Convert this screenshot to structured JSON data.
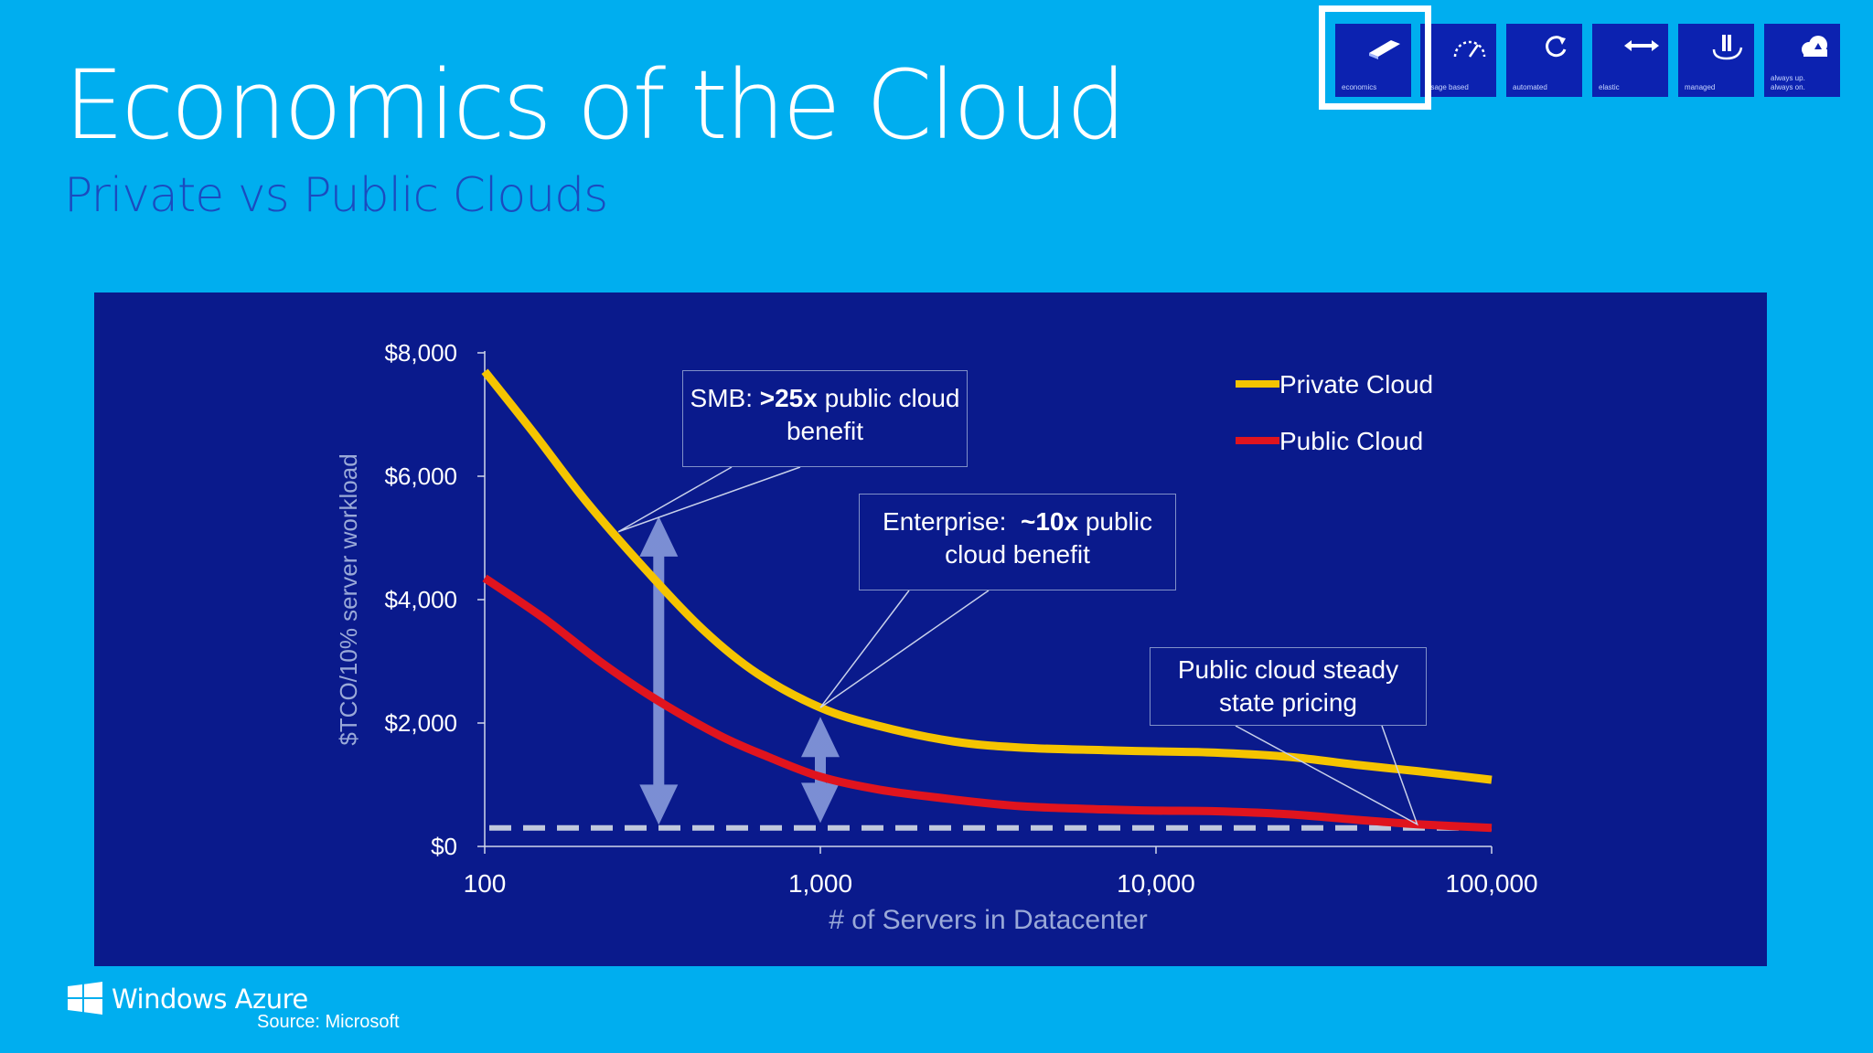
{
  "header": {
    "title": "Economics of the Cloud",
    "subtitle": "Private vs Public Clouds"
  },
  "nav_tiles": [
    {
      "label": "economics",
      "icon": "pen-icon",
      "active": true
    },
    {
      "label": "usage based",
      "icon": "gauge-icon",
      "active": false
    },
    {
      "label": "automated",
      "icon": "refresh-icon",
      "active": false
    },
    {
      "label": "elastic",
      "icon": "double-arrow-icon",
      "active": false
    },
    {
      "label": "managed",
      "icon": "server-hand-icon",
      "active": false
    },
    {
      "label": "always up. always on.",
      "label_line1": "always up.",
      "label_line2": "always on.",
      "icon": "cloud-icon",
      "active": false
    }
  ],
  "chart_data": {
    "type": "line",
    "title": "",
    "xlabel": "# of Servers in Datacenter",
    "ylabel": "$TCO/10% server workload",
    "x_scale": "log",
    "xlim": [
      100,
      100000
    ],
    "ylim": [
      0,
      8000
    ],
    "x_ticks": [
      100,
      1000,
      10000,
      100000
    ],
    "x_tick_labels": [
      "100",
      "1,000",
      "10,000",
      "100,000"
    ],
    "y_ticks": [
      0,
      2000,
      4000,
      6000,
      8000
    ],
    "y_tick_labels": [
      "$0",
      "$2,000",
      "$4,000",
      "$6,000",
      "$8,000"
    ],
    "grid": false,
    "legend_position": "top-right",
    "series": [
      {
        "name": "Private Cloud",
        "color": "#f5c400",
        "points": [
          [
            100,
            7700
          ],
          [
            140,
            6700
          ],
          [
            200,
            5600
          ],
          [
            300,
            4500
          ],
          [
            450,
            3500
          ],
          [
            650,
            2800
          ],
          [
            1000,
            2250
          ],
          [
            1500,
            1950
          ],
          [
            2500,
            1700
          ],
          [
            4000,
            1600
          ],
          [
            7000,
            1560
          ],
          [
            10000,
            1540
          ],
          [
            15000,
            1520
          ],
          [
            25000,
            1450
          ],
          [
            40000,
            1320
          ],
          [
            60000,
            1220
          ],
          [
            100000,
            1080
          ]
        ]
      },
      {
        "name": "Public Cloud",
        "color": "#e0141e",
        "points": [
          [
            100,
            4350
          ],
          [
            150,
            3700
          ],
          [
            220,
            3000
          ],
          [
            320,
            2400
          ],
          [
            500,
            1800
          ],
          [
            700,
            1450
          ],
          [
            1000,
            1130
          ],
          [
            1500,
            920
          ],
          [
            2500,
            760
          ],
          [
            4000,
            650
          ],
          [
            7000,
            600
          ],
          [
            10000,
            580
          ],
          [
            15000,
            570
          ],
          [
            25000,
            520
          ],
          [
            40000,
            430
          ],
          [
            60000,
            360
          ],
          [
            100000,
            300
          ]
        ]
      }
    ],
    "reference_line": {
      "y": 300,
      "style": "dashed",
      "color": "#c0c8dc"
    },
    "annotations": [
      {
        "id": "smb",
        "text_parts": [
          "SMB: ",
          ">25x",
          " public cloud benefit"
        ],
        "target": [
          250,
          5100
        ]
      },
      {
        "id": "enterprise",
        "text_parts": [
          "Enterprise:  ",
          "~10x",
          " public cloud benefit"
        ],
        "target": [
          1000,
          2250
        ]
      },
      {
        "id": "steady",
        "text": "Public cloud steady state pricing",
        "target": [
          60000,
          330
        ]
      }
    ],
    "gap_arrows": [
      {
        "x": 330,
        "y_top": 5350,
        "y_bottom": 350
      },
      {
        "x": 1000,
        "y_top": 2100,
        "y_bottom": 380
      }
    ]
  },
  "footer": {
    "brand": "Windows Azure",
    "source": "Source: Microsoft"
  },
  "colors": {
    "background": "#00aeef",
    "panel": "#0a1a8c",
    "tile": "#0c22b0",
    "subtitle": "#1b4bbf"
  }
}
